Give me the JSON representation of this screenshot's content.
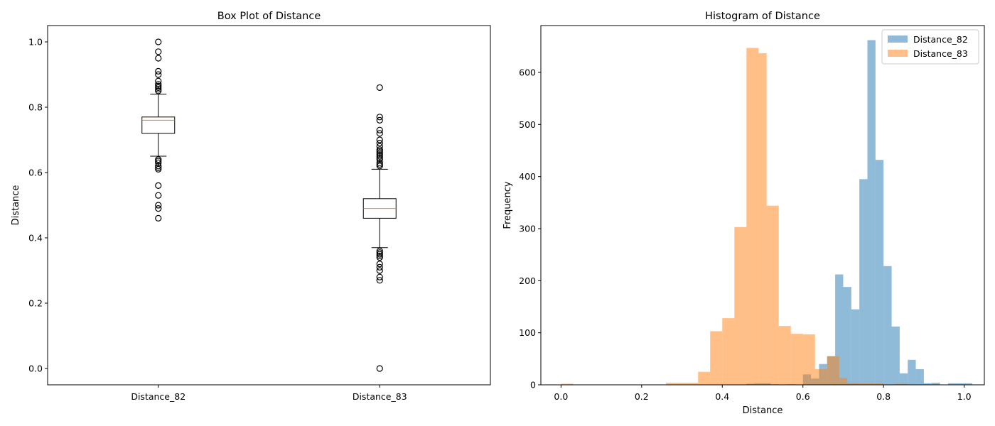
{
  "chart_data": [
    {
      "type": "box",
      "title": "Box Plot of Distance",
      "ylabel": "Distance",
      "xlabel": "",
      "ylim": [
        -0.05,
        1.05
      ],
      "yticks": [
        0.0,
        0.2,
        0.4,
        0.6,
        0.8,
        1.0
      ],
      "ytick_labels": [
        "0.0",
        "0.2",
        "0.4",
        "0.6",
        "0.8",
        "1.0"
      ],
      "grid": false,
      "series": [
        {
          "name": "Distance_82",
          "whisker_low": 0.65,
          "q1": 0.72,
          "median": 0.76,
          "q3": 0.77,
          "whisker_high": 0.84,
          "outliers": [
            0.46,
            0.49,
            0.5,
            0.53,
            0.56,
            0.61,
            0.615,
            0.62,
            0.63,
            0.635,
            0.64,
            0.85,
            0.855,
            0.86,
            0.865,
            0.87,
            0.88,
            0.9,
            0.91,
            0.95,
            0.97,
            1.0
          ]
        },
        {
          "name": "Distance_83",
          "whisker_low": 0.37,
          "q1": 0.46,
          "median": 0.49,
          "q3": 0.52,
          "whisker_high": 0.61,
          "outliers": [
            0.0,
            0.27,
            0.28,
            0.3,
            0.31,
            0.32,
            0.34,
            0.345,
            0.35,
            0.355,
            0.36,
            0.62,
            0.625,
            0.63,
            0.64,
            0.645,
            0.65,
            0.655,
            0.66,
            0.665,
            0.67,
            0.68,
            0.69,
            0.7,
            0.72,
            0.73,
            0.76,
            0.77,
            0.86
          ]
        }
      ]
    },
    {
      "type": "histogram",
      "title": "Histogram of Distance",
      "xlabel": "Distance",
      "ylabel": "Frequency",
      "xlim": [
        -0.05,
        1.05
      ],
      "ylim": [
        0,
        690
      ],
      "xticks": [
        0.0,
        0.2,
        0.4,
        0.6,
        0.8,
        1.0
      ],
      "xtick_labels": [
        "0.0",
        "0.2",
        "0.4",
        "0.6",
        "0.8",
        "1.0"
      ],
      "yticks": [
        0,
        100,
        200,
        300,
        400,
        500,
        600
      ],
      "ytick_labels": [
        "0",
        "100",
        "200",
        "300",
        "400",
        "500",
        "600"
      ],
      "legend": "top-right",
      "grid": false,
      "series": [
        {
          "name": "Distance_82",
          "color": "#1f77b4",
          "alpha": 0.5,
          "bins": [
            [
              0.46,
              0.48,
              2
            ],
            [
              0.48,
              0.5,
              3
            ],
            [
              0.5,
              0.52,
              3
            ],
            [
              0.52,
              0.54,
              1
            ],
            [
              0.56,
              0.58,
              1
            ],
            [
              0.6,
              0.62,
              20
            ],
            [
              0.62,
              0.64,
              12
            ],
            [
              0.64,
              0.66,
              40
            ],
            [
              0.66,
              0.68,
              55
            ],
            [
              0.68,
              0.7,
              212
            ],
            [
              0.7,
              0.72,
              188
            ],
            [
              0.72,
              0.74,
              145
            ],
            [
              0.74,
              0.76,
              395
            ],
            [
              0.76,
              0.78,
              662
            ],
            [
              0.78,
              0.8,
              432
            ],
            [
              0.8,
              0.82,
              228
            ],
            [
              0.82,
              0.84,
              112
            ],
            [
              0.84,
              0.86,
              22
            ],
            [
              0.86,
              0.88,
              48
            ],
            [
              0.88,
              0.9,
              30
            ],
            [
              0.9,
              0.92,
              3
            ],
            [
              0.92,
              0.94,
              4
            ],
            [
              0.96,
              0.98,
              3
            ],
            [
              0.98,
              1.0,
              3
            ],
            [
              1.0,
              1.02,
              3
            ]
          ]
        },
        {
          "name": "Distance_83",
          "color": "#ff7f0e",
          "alpha": 0.5,
          "bins": [
            [
              0.0,
              0.03,
              2
            ],
            [
              0.26,
              0.29,
              4
            ],
            [
              0.29,
              0.31,
              4
            ],
            [
              0.31,
              0.34,
              4
            ],
            [
              0.34,
              0.37,
              25
            ],
            [
              0.37,
              0.4,
              103
            ],
            [
              0.4,
              0.43,
              128
            ],
            [
              0.43,
              0.46,
              303
            ],
            [
              0.46,
              0.49,
              647
            ],
            [
              0.49,
              0.51,
              637
            ],
            [
              0.51,
              0.54,
              344
            ],
            [
              0.54,
              0.57,
              113
            ],
            [
              0.57,
              0.6,
              98
            ],
            [
              0.6,
              0.63,
              97
            ],
            [
              0.63,
              0.66,
              30
            ],
            [
              0.66,
              0.69,
              55
            ],
            [
              0.69,
              0.71,
              13
            ],
            [
              0.71,
              0.74,
              4
            ],
            [
              0.74,
              0.77,
              3
            ],
            [
              0.77,
              0.8,
              3
            ],
            [
              0.83,
              0.86,
              2
            ]
          ]
        }
      ]
    }
  ]
}
